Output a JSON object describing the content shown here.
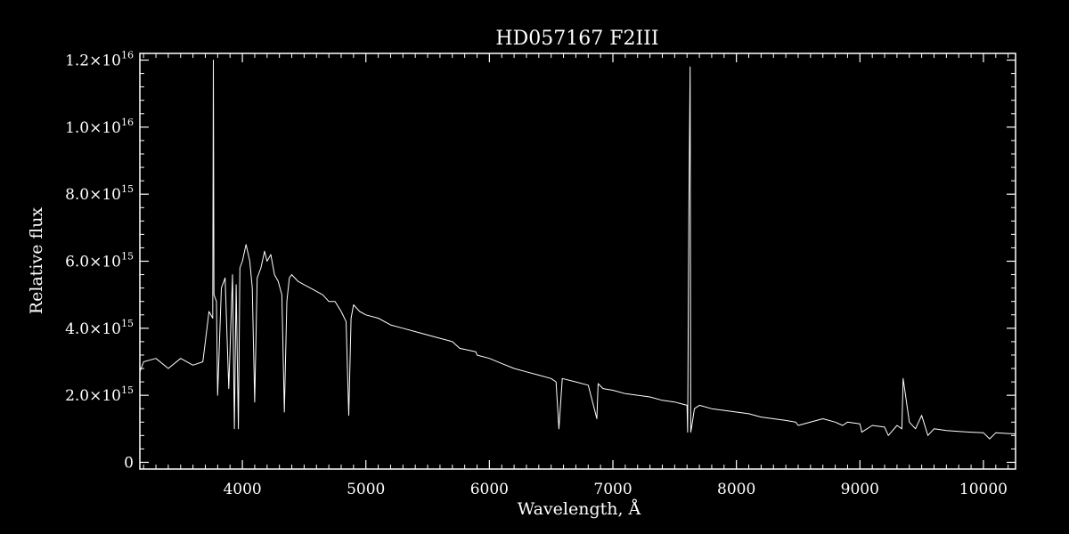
{
  "chart_data": {
    "type": "line",
    "title": "HD057167   F2III",
    "xlabel": "Wavelength, Å",
    "ylabel": "Relative flux",
    "xlim": [
      3170,
      10260
    ],
    "ylim": [
      -200000000000000.0,
      1.22e+16
    ],
    "x_ticks": [
      4000,
      5000,
      6000,
      7000,
      8000,
      9000,
      10000
    ],
    "x_tick_labels": [
      "4000",
      "5000",
      "6000",
      "7000",
      "8000",
      "9000",
      "10000"
    ],
    "y_ticks": [
      0,
      2000000000000000.0,
      4000000000000000.0,
      6000000000000000.0,
      8000000000000000.0,
      1e+16,
      1.2e+16
    ],
    "y_tick_labels": [
      {
        "mantissa": "0",
        "exp": ""
      },
      {
        "mantissa": "2.0×10",
        "exp": "15"
      },
      {
        "mantissa": "4.0×10",
        "exp": "15"
      },
      {
        "mantissa": "6.0×10",
        "exp": "15"
      },
      {
        "mantissa": "8.0×10",
        "exp": "15"
      },
      {
        "mantissa": "1.0×10",
        "exp": "16"
      },
      {
        "mantissa": "1.2×10",
        "exp": "16"
      }
    ],
    "grid": false,
    "series": [
      {
        "color": "#ffffff",
        "x": [
          3170,
          3200,
          3300,
          3400,
          3500,
          3600,
          3680,
          3700,
          3730,
          3760,
          3765,
          3770,
          3790,
          3800,
          3830,
          3860,
          3890,
          3920,
          3935,
          3950,
          3968,
          3980,
          4000,
          4030,
          4060,
          4080,
          4100,
          4120,
          4150,
          4180,
          4200,
          4230,
          4260,
          4290,
          4320,
          4340,
          4360,
          4380,
          4400,
          4450,
          4500,
          4550,
          4600,
          4650,
          4700,
          4750,
          4800,
          4840,
          4861,
          4880,
          4900,
          4950,
          5000,
          5100,
          5200,
          5300,
          5400,
          5500,
          5600,
          5700,
          5760,
          5890,
          5900,
          6000,
          6100,
          6200,
          6300,
          6400,
          6500,
          6540,
          6563,
          6590,
          6700,
          6800,
          6870,
          6880,
          6920,
          7000,
          7100,
          7200,
          7300,
          7400,
          7500,
          7600,
          7605,
          7615,
          7625,
          7630,
          7640,
          7660,
          7700,
          7800,
          7900,
          8000,
          8100,
          8200,
          8300,
          8400,
          8480,
          8500,
          8700,
          8800,
          8860,
          8900,
          9000,
          9015,
          9100,
          9200,
          9230,
          9300,
          9340,
          9350,
          9400,
          9450,
          9500,
          9550,
          9600,
          9700,
          9800,
          9900,
          10000,
          10050,
          10100,
          10200,
          10260
        ],
        "y": [
          2700000000000000.0,
          3000000000000000.0,
          3100000000000000.0,
          2800000000000000.0,
          3100000000000000.0,
          2900000000000000.0,
          3000000000000000.0,
          3600000000000000.0,
          4500000000000000.0,
          4300000000000000.0,
          1.2e+16,
          5000000000000000.0,
          4800000000000000.0,
          2000000000000000.0,
          5200000000000000.0,
          5500000000000000.0,
          2200000000000000.0,
          5600000000000000.0,
          1000000000000000.0,
          5300000000000000.0,
          1000000000000000.0,
          5800000000000000.0,
          6000000000000000.0,
          6500000000000000.0,
          6000000000000000.0,
          5200000000000000.0,
          1800000000000000.0,
          5500000000000000.0,
          5800000000000000.0,
          6300000000000000.0,
          6000000000000000.0,
          6200000000000000.0,
          5600000000000000.0,
          5400000000000000.0,
          5000000000000000.0,
          1500000000000000.0,
          4800000000000000.0,
          5500000000000000.0,
          5600000000000000.0,
          5400000000000000.0,
          5300000000000000.0,
          5200000000000000.0,
          5100000000000000.0,
          5000000000000000.0,
          4800000000000000.0,
          4800000000000000.0,
          4500000000000000.0,
          4200000000000000.0,
          1400000000000000.0,
          4300000000000000.0,
          4700000000000000.0,
          4500000000000000.0,
          4400000000000000.0,
          4300000000000000.0,
          4100000000000000.0,
          4000000000000000.0,
          3900000000000000.0,
          3800000000000000.0,
          3700000000000000.0,
          3600000000000000.0,
          3400000000000000.0,
          3300000000000000.0,
          3200000000000000.0,
          3100000000000000.0,
          2950000000000000.0,
          2800000000000000.0,
          2700000000000000.0,
          2600000000000000.0,
          2500000000000000.0,
          2400000000000000.0,
          1000000000000000.0,
          2500000000000000.0,
          2400000000000000.0,
          2300000000000000.0,
          1300000000000000.0,
          2350000000000000.0,
          2200000000000000.0,
          2150000000000000.0,
          2050000000000000.0,
          2000000000000000.0,
          1950000000000000.0,
          1850000000000000.0,
          1800000000000000.0,
          1700000000000000.0,
          900000000000000.0,
          7500000000000000.0,
          1.18e+16,
          900000000000000.0,
          1100000000000000.0,
          1600000000000000.0,
          1700000000000000.0,
          1600000000000000.0,
          1550000000000000.0,
          1500000000000000.0,
          1450000000000000.0,
          1350000000000000.0,
          1300000000000000.0,
          1250000000000000.0,
          1200000000000000.0,
          1100000000000000.0,
          1300000000000000.0,
          1200000000000000.0,
          1100000000000000.0,
          1200000000000000.0,
          1150000000000000.0,
          900000000000000.0,
          1100000000000000.0,
          1050000000000000.0,
          800000000000000.0,
          1100000000000000.0,
          1000000000000000.0,
          2500000000000000.0,
          1200000000000000.0,
          1000000000000000.0,
          1400000000000000.0,
          800000000000000.0,
          1000000000000000.0,
          950000000000000.0,
          920000000000000.0,
          900000000000000.0,
          880000000000000.0,
          700000000000000.0,
          880000000000000.0,
          860000000000000.0,
          850000000000000.0
        ]
      }
    ]
  }
}
